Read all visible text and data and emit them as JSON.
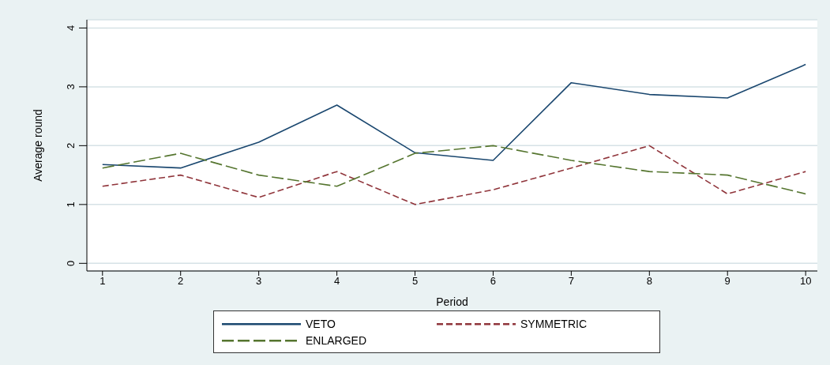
{
  "chart_data": {
    "type": "line",
    "xlabel": "Period",
    "ylabel": "Average round",
    "x": [
      1,
      2,
      3,
      4,
      5,
      6,
      7,
      8,
      9,
      10
    ],
    "series": [
      {
        "name": "VETO",
        "color": "#1a476f",
        "line_style": "solid",
        "values": [
          1.68,
          1.62,
          2.06,
          2.69,
          1.88,
          1.75,
          3.07,
          2.87,
          2.81,
          3.38
        ]
      },
      {
        "name": "SYMMETRIC",
        "color": "#90353b",
        "line_style": "dashed",
        "values": [
          1.31,
          1.5,
          1.12,
          1.56,
          1.0,
          1.25,
          1.62,
          2.0,
          1.18,
          1.56
        ]
      },
      {
        "name": "ENLARGED",
        "color": "#55752f",
        "line_style": "dashed",
        "values": [
          1.62,
          1.87,
          1.5,
          1.31,
          1.87,
          2.0,
          1.75,
          1.56,
          1.5,
          1.18
        ]
      }
    ],
    "xlim": [
      0.8,
      10.15
    ],
    "xticks": [
      1,
      2,
      3,
      4,
      5,
      6,
      7,
      8,
      9,
      10
    ],
    "ylim": [
      -0.13,
      4.14
    ],
    "yticks": [
      0,
      1,
      2,
      3,
      4
    ],
    "grid": "y",
    "legend": "bottom",
    "marker": "none"
  }
}
